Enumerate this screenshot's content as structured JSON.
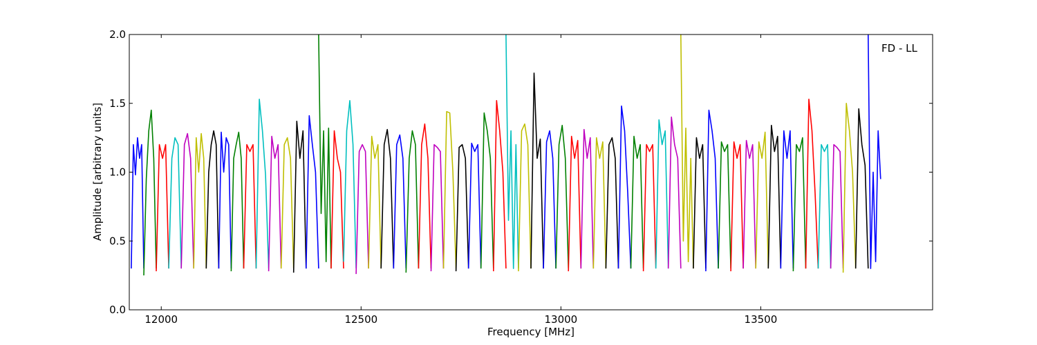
{
  "chart_data": {
    "type": "line",
    "title": "",
    "annotation": "FD - LL",
    "xlabel": "Frequency [MHz]",
    "ylabel": "Amplitude [arbitrary units]",
    "xlim": [
      11920,
      13930
    ],
    "ylim": [
      0.0,
      2.0
    ],
    "xticks": [
      12000,
      12500,
      13000,
      13500
    ],
    "yticks": [
      0.0,
      0.5,
      1.0,
      1.5,
      2.0
    ],
    "ytick_labels": [
      "0.0",
      "0.5",
      "1.0",
      "1.5",
      "2.0"
    ],
    "grid": false,
    "legend": "none",
    "colors": [
      "#0000ff",
      "#008000",
      "#ff0000",
      "#00bfbf",
      "#bf00bf",
      "#bfbf00",
      "#000000"
    ],
    "band_start_mhz": 11925,
    "band_width_mhz": 31.25,
    "series": [
      {
        "color": "#0000ff",
        "values": [
          0.3,
          1.2,
          0.98,
          1.25,
          1.1,
          1.2,
          0.3
        ]
      },
      {
        "color": "#008000",
        "values": [
          0.25,
          0.95,
          1.3,
          1.45,
          1.1,
          0.3
        ]
      },
      {
        "color": "#ff0000",
        "values": [
          0.28,
          1.2,
          1.1,
          1.2,
          0.3
        ]
      },
      {
        "color": "#00bfbf",
        "values": [
          0.3,
          1.1,
          1.25,
          1.2,
          0.3
        ]
      },
      {
        "color": "#bf00bf",
        "values": [
          0.3,
          1.2,
          1.28,
          1.1,
          0.3
        ]
      },
      {
        "color": "#bfbf00",
        "values": [
          0.3,
          1.25,
          1.0,
          1.28,
          1.1,
          0.3
        ]
      },
      {
        "color": "#000000",
        "values": [
          0.3,
          1.0,
          1.2,
          1.3,
          1.2,
          0.3
        ]
      },
      {
        "color": "#0000ff",
        "values": [
          0.3,
          1.29,
          1.0,
          1.25,
          1.2,
          0.3
        ]
      },
      {
        "color": "#008000",
        "values": [
          0.28,
          1.1,
          1.2,
          1.29,
          1.1,
          0.3
        ]
      },
      {
        "color": "#ff0000",
        "values": [
          0.3,
          1.2,
          1.15,
          1.2,
          0.3
        ]
      },
      {
        "color": "#00bfbf",
        "values": [
          0.3,
          1.53,
          1.3,
          0.98,
          0.3
        ]
      },
      {
        "color": "#bf00bf",
        "values": [
          0.28,
          1.26,
          1.1,
          1.2,
          0.3
        ]
      },
      {
        "color": "#bfbf00",
        "values": [
          0.3,
          1.2,
          1.25,
          1.1,
          0.3
        ]
      },
      {
        "color": "#000000",
        "values": [
          0.27,
          1.37,
          1.1,
          1.3,
          0.3
        ]
      },
      {
        "color": "#0000ff",
        "values": [
          0.3,
          1.41,
          1.2,
          1.0,
          0.3
        ]
      },
      {
        "color": "#008000",
        "values": [
          2.0,
          0.7,
          1.3,
          0.35,
          1.32,
          0.3
        ]
      },
      {
        "color": "#ff0000",
        "values": [
          0.3,
          1.3,
          1.1,
          1.0,
          0.3
        ]
      },
      {
        "color": "#00bfbf",
        "values": [
          0.35,
          1.3,
          1.52,
          1.2,
          0.3
        ]
      },
      {
        "color": "#bf00bf",
        "values": [
          0.26,
          1.15,
          1.2,
          1.15,
          0.3
        ]
      },
      {
        "color": "#bfbf00",
        "values": [
          0.3,
          1.26,
          1.1,
          1.2,
          0.3
        ]
      },
      {
        "color": "#000000",
        "values": [
          0.3,
          1.2,
          1.31,
          1.1,
          0.3
        ]
      },
      {
        "color": "#0000ff",
        "values": [
          0.3,
          1.2,
          1.27,
          1.1,
          0.3
        ]
      },
      {
        "color": "#008000",
        "values": [
          0.27,
          1.1,
          1.3,
          1.2,
          0.3
        ]
      },
      {
        "color": "#ff0000",
        "values": [
          0.3,
          1.2,
          1.35,
          1.1,
          0.3
        ]
      },
      {
        "color": "#bf00bf",
        "values": [
          0.28,
          1.2,
          1.18,
          1.15,
          0.3
        ]
      },
      {
        "color": "#bfbf00",
        "values": [
          0.3,
          1.44,
          1.43,
          1.0,
          0.3
        ]
      },
      {
        "color": "#000000",
        "values": [
          0.28,
          1.18,
          1.2,
          1.1,
          0.3
        ]
      },
      {
        "color": "#0000ff",
        "values": [
          0.3,
          1.21,
          1.15,
          1.2,
          0.3
        ]
      },
      {
        "color": "#008000",
        "values": [
          0.3,
          1.43,
          1.3,
          1.1,
          0.3
        ]
      },
      {
        "color": "#ff0000",
        "values": [
          0.28,
          1.52,
          1.3,
          1.0,
          0.3
        ]
      },
      {
        "color": "#00bfbf",
        "values": [
          2.0,
          0.65,
          1.3,
          0.3,
          1.2,
          0.3
        ]
      },
      {
        "color": "#bfbf00",
        "values": [
          0.28,
          1.3,
          1.35,
          1.2,
          0.3
        ]
      },
      {
        "color": "#000000",
        "values": [
          0.3,
          1.72,
          1.1,
          1.24,
          0.3
        ]
      },
      {
        "color": "#0000ff",
        "values": [
          0.3,
          1.22,
          1.3,
          1.1,
          0.3
        ]
      },
      {
        "color": "#008000",
        "values": [
          0.3,
          1.2,
          1.34,
          1.1,
          0.3
        ]
      },
      {
        "color": "#ff0000",
        "values": [
          0.28,
          1.26,
          1.1,
          1.23,
          0.3
        ]
      },
      {
        "color": "#bf00bf",
        "values": [
          0.3,
          1.31,
          1.1,
          1.25,
          0.3
        ]
      },
      {
        "color": "#bfbf00",
        "values": [
          0.3,
          1.25,
          1.1,
          1.22,
          0.3
        ]
      },
      {
        "color": "#000000",
        "values": [
          0.3,
          1.2,
          1.25,
          1.1,
          0.3
        ]
      },
      {
        "color": "#0000ff",
        "values": [
          0.3,
          1.48,
          1.3,
          0.85,
          0.3
        ]
      },
      {
        "color": "#008000",
        "values": [
          0.3,
          1.26,
          1.1,
          1.2,
          0.3
        ]
      },
      {
        "color": "#ff0000",
        "values": [
          0.28,
          1.2,
          1.15,
          1.2,
          0.3
        ]
      },
      {
        "color": "#00bfbf",
        "values": [
          0.3,
          1.38,
          1.2,
          1.3,
          0.3
        ]
      },
      {
        "color": "#bf00bf",
        "values": [
          0.3,
          1.4,
          1.2,
          1.1,
          0.3
        ]
      },
      {
        "color": "#bfbf00",
        "values": [
          2.0,
          0.5,
          1.32,
          0.35,
          1.1,
          0.3
        ]
      },
      {
        "color": "#000000",
        "values": [
          0.3,
          1.25,
          1.1,
          1.2,
          0.3
        ]
      },
      {
        "color": "#0000ff",
        "values": [
          0.28,
          1.45,
          1.3,
          1.1,
          0.3
        ]
      },
      {
        "color": "#008000",
        "values": [
          0.3,
          1.22,
          1.15,
          1.2,
          0.3
        ]
      },
      {
        "color": "#ff0000",
        "values": [
          0.28,
          1.22,
          1.1,
          1.2,
          0.3
        ]
      },
      {
        "color": "#bf00bf",
        "values": [
          0.3,
          1.23,
          1.1,
          1.2,
          0.3
        ]
      },
      {
        "color": "#bfbf00",
        "values": [
          0.3,
          1.22,
          1.1,
          1.29,
          0.3
        ]
      },
      {
        "color": "#000000",
        "values": [
          0.3,
          1.34,
          1.15,
          1.26,
          0.3
        ]
      },
      {
        "color": "#0000ff",
        "values": [
          0.3,
          1.3,
          1.1,
          1.3,
          0.3
        ]
      },
      {
        "color": "#008000",
        "values": [
          0.28,
          1.2,
          1.15,
          1.25,
          0.3
        ]
      },
      {
        "color": "#ff0000",
        "values": [
          0.3,
          1.53,
          1.3,
          0.85,
          0.3
        ]
      },
      {
        "color": "#00bfbf",
        "values": [
          0.3,
          1.2,
          1.15,
          1.2,
          0.3
        ]
      },
      {
        "color": "#bf00bf",
        "values": [
          0.3,
          1.2,
          1.18,
          1.15,
          0.3
        ]
      },
      {
        "color": "#bfbf00",
        "values": [
          0.27,
          1.5,
          1.3,
          1.0,
          0.3
        ]
      },
      {
        "color": "#000000",
        "values": [
          0.3,
          1.46,
          1.2,
          1.05,
          0.3
        ]
      },
      {
        "color": "#0000ff",
        "values": [
          2.0,
          0.3,
          1.0,
          0.35,
          1.3,
          0.95
        ]
      }
    ]
  }
}
